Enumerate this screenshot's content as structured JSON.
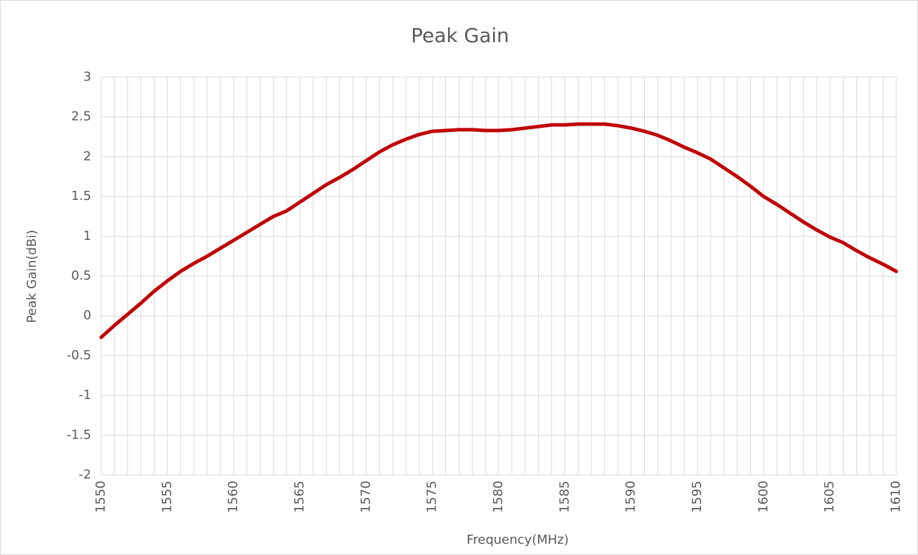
{
  "chart_data": {
    "type": "line",
    "title": "Peak Gain",
    "xlabel": "Frequency(MHz)",
    "ylabel": "Peak Gain(dBi)",
    "x": [
      1550,
      1551,
      1552,
      1553,
      1554,
      1555,
      1556,
      1557,
      1558,
      1559,
      1560,
      1561,
      1562,
      1563,
      1564,
      1565,
      1566,
      1567,
      1568,
      1569,
      1570,
      1571,
      1572,
      1573,
      1574,
      1575,
      1576,
      1577,
      1578,
      1579,
      1580,
      1581,
      1582,
      1583,
      1584,
      1585,
      1586,
      1587,
      1588,
      1589,
      1590,
      1591,
      1592,
      1593,
      1594,
      1595,
      1596,
      1597,
      1598,
      1599,
      1600,
      1601,
      1602,
      1603,
      1604,
      1605,
      1606,
      1607,
      1608,
      1609,
      1610
    ],
    "values": [
      -0.27,
      -0.12,
      0.02,
      0.16,
      0.31,
      0.44,
      0.56,
      0.66,
      0.75,
      0.85,
      0.95,
      1.05,
      1.15,
      1.25,
      1.32,
      1.43,
      1.54,
      1.65,
      1.74,
      1.84,
      1.95,
      2.06,
      2.15,
      2.22,
      2.28,
      2.32,
      2.33,
      2.34,
      2.34,
      2.33,
      2.33,
      2.34,
      2.36,
      2.38,
      2.4,
      2.4,
      2.41,
      2.41,
      2.41,
      2.39,
      2.36,
      2.32,
      2.27,
      2.2,
      2.12,
      2.05,
      1.97,
      1.86,
      1.75,
      1.63,
      1.5,
      1.4,
      1.29,
      1.18,
      1.08,
      0.99,
      0.92,
      0.82,
      0.73,
      0.65,
      0.56
    ],
    "color": "#c00000",
    "xlim": [
      1550,
      1610
    ],
    "xticks": [
      1550,
      1555,
      1560,
      1565,
      1570,
      1575,
      1580,
      1585,
      1590,
      1595,
      1600,
      1605,
      1610
    ],
    "xgrid": [
      1550,
      1551,
      1552,
      1553,
      1554,
      1555,
      1556,
      1557,
      1558,
      1559,
      1560,
      1561,
      1562,
      1563,
      1564,
      1565,
      1566,
      1567,
      1568,
      1569,
      1570,
      1571,
      1572,
      1573,
      1574,
      1575,
      1576,
      1577,
      1578,
      1579,
      1580,
      1581,
      1582,
      1583,
      1584,
      1585,
      1586,
      1587,
      1588,
      1589,
      1590,
      1591,
      1592,
      1593,
      1594,
      1595,
      1596,
      1597,
      1598,
      1599,
      1600,
      1601,
      1602,
      1603,
      1604,
      1605,
      1606,
      1607,
      1608,
      1609,
      1610
    ],
    "ylim": [
      -2,
      3
    ],
    "yticks": [
      3,
      2.5,
      2,
      1.5,
      1,
      0.5,
      0,
      -0.5,
      -1,
      -1.5,
      -2
    ],
    "grid": true
  }
}
